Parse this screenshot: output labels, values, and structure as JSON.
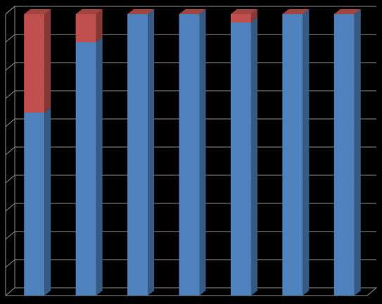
{
  "chart_data": {
    "type": "bar3d_stacked",
    "categories": [
      null,
      null,
      null,
      null,
      null,
      null,
      null
    ],
    "series": [
      {
        "color": "#4f81bd",
        "values": [
          65,
          90,
          100,
          100,
          97,
          100,
          100
        ]
      },
      {
        "color": "#c0504d",
        "values": [
          35,
          10,
          0,
          0,
          3,
          0,
          0
        ]
      }
    ],
    "ylim": [
      0,
      100
    ],
    "yticks": [
      0,
      10,
      20,
      30,
      40,
      50,
      60,
      70,
      80,
      90,
      100
    ],
    "grid": true
  }
}
